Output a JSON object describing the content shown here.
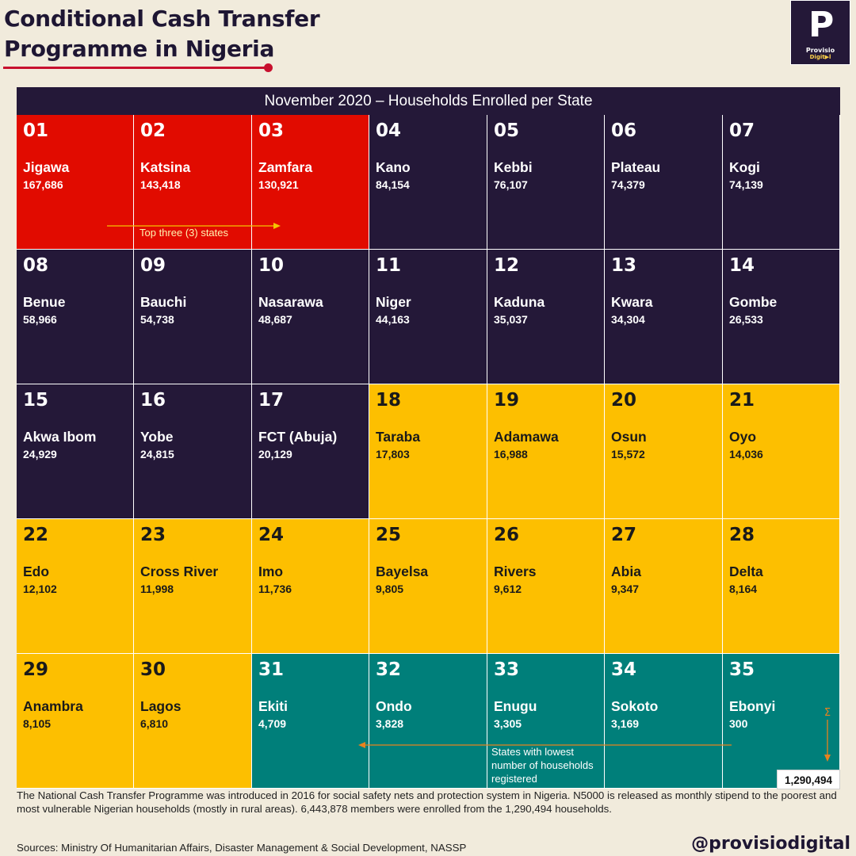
{
  "title_line1": "Conditional Cash Transfer",
  "title_line2": "Programme in Nigeria",
  "logo": {
    "letter": "P",
    "brand": "Provisio",
    "sub": "Digit▶l"
  },
  "banner": "November 2020 – Households Enrolled per State",
  "top_note": "Top three (3) states",
  "low_note": "States with lowest number of households registered",
  "sum_symbol": "Σ",
  "total": "1,290,494",
  "footnote": "The National Cash Transfer Programme was introduced in 2016 for social safety nets and protection system in Nigeria. N5000 is released as monthly stipend to the poorest and most vulnerable Nigerian households (mostly in rural areas). 6,443,878 members were enrolled from the 1,290,494 households.",
  "sources": "Sources: Ministry Of Humanitarian Affairs, Disaster Management & Social Development, NASSP",
  "handle": "@provisiodigital",
  "colors": {
    "red": "#e10b00",
    "dark": "#241838",
    "yellow": "#fdbf00",
    "teal": "#007f7a"
  },
  "chart_data": {
    "type": "table",
    "title": "November 2020 – Households Enrolled per State",
    "columns": 7,
    "cells": [
      {
        "rank": "01",
        "state": "Jigawa",
        "value": "167,686",
        "group": "red"
      },
      {
        "rank": "02",
        "state": "Katsina",
        "value": "143,418",
        "group": "red"
      },
      {
        "rank": "03",
        "state": "Zamfara",
        "value": "130,921",
        "group": "red"
      },
      {
        "rank": "04",
        "state": "Kano",
        "value": "84,154",
        "group": "dark"
      },
      {
        "rank": "05",
        "state": "Kebbi",
        "value": "76,107",
        "group": "dark"
      },
      {
        "rank": "06",
        "state": "Plateau",
        "value": "74,379",
        "group": "dark"
      },
      {
        "rank": "07",
        "state": "Kogi",
        "value": "74,139",
        "group": "dark"
      },
      {
        "rank": "08",
        "state": "Benue",
        "value": "58,966",
        "group": "dark"
      },
      {
        "rank": "09",
        "state": "Bauchi",
        "value": "54,738",
        "group": "dark"
      },
      {
        "rank": "10",
        "state": "Nasarawa",
        "value": "48,687",
        "group": "dark"
      },
      {
        "rank": "11",
        "state": "Niger",
        "value": "44,163",
        "group": "dark"
      },
      {
        "rank": "12",
        "state": "Kaduna",
        "value": "35,037",
        "group": "dark"
      },
      {
        "rank": "13",
        "state": "Kwara",
        "value": "34,304",
        "group": "dark"
      },
      {
        "rank": "14",
        "state": "Gombe",
        "value": "26,533",
        "group": "dark"
      },
      {
        "rank": "15",
        "state": "Akwa Ibom",
        "value": "24,929",
        "group": "dark"
      },
      {
        "rank": "16",
        "state": "Yobe",
        "value": "24,815",
        "group": "dark"
      },
      {
        "rank": "17",
        "state": "FCT (Abuja)",
        "value": "20,129",
        "group": "dark"
      },
      {
        "rank": "18",
        "state": "Taraba",
        "value": "17,803",
        "group": "yellow"
      },
      {
        "rank": "19",
        "state": "Adamawa",
        "value": "16,988",
        "group": "yellow"
      },
      {
        "rank": "20",
        "state": "Osun",
        "value": "15,572",
        "group": "yellow"
      },
      {
        "rank": "21",
        "state": "Oyo",
        "value": "14,036",
        "group": "yellow"
      },
      {
        "rank": "22",
        "state": "Edo",
        "value": "12,102",
        "group": "yellow"
      },
      {
        "rank": "23",
        "state": "Cross River",
        "value": "11,998",
        "group": "yellow"
      },
      {
        "rank": "24",
        "state": "Imo",
        "value": "11,736",
        "group": "yellow"
      },
      {
        "rank": "25",
        "state": "Bayelsa",
        "value": "9,805",
        "group": "yellow"
      },
      {
        "rank": "26",
        "state": "Rivers",
        "value": "9,612",
        "group": "yellow"
      },
      {
        "rank": "27",
        "state": "Abia",
        "value": "9,347",
        "group": "yellow"
      },
      {
        "rank": "28",
        "state": "Delta",
        "value": "8,164",
        "group": "yellow"
      },
      {
        "rank": "29",
        "state": "Anambra",
        "value": "8,105",
        "group": "yellow"
      },
      {
        "rank": "30",
        "state": "Lagos",
        "value": "6,810",
        "group": "yellow"
      },
      {
        "rank": "31",
        "state": "Ekiti",
        "value": "4,709",
        "group": "teal"
      },
      {
        "rank": "32",
        "state": "Ondo",
        "value": "3,828",
        "group": "teal"
      },
      {
        "rank": "33",
        "state": "Enugu",
        "value": "3,305",
        "group": "teal"
      },
      {
        "rank": "34",
        "state": "Sokoto",
        "value": "3,169",
        "group": "teal"
      },
      {
        "rank": "35",
        "state": "Ebonyi",
        "value": "300",
        "group": "teal"
      }
    ]
  }
}
